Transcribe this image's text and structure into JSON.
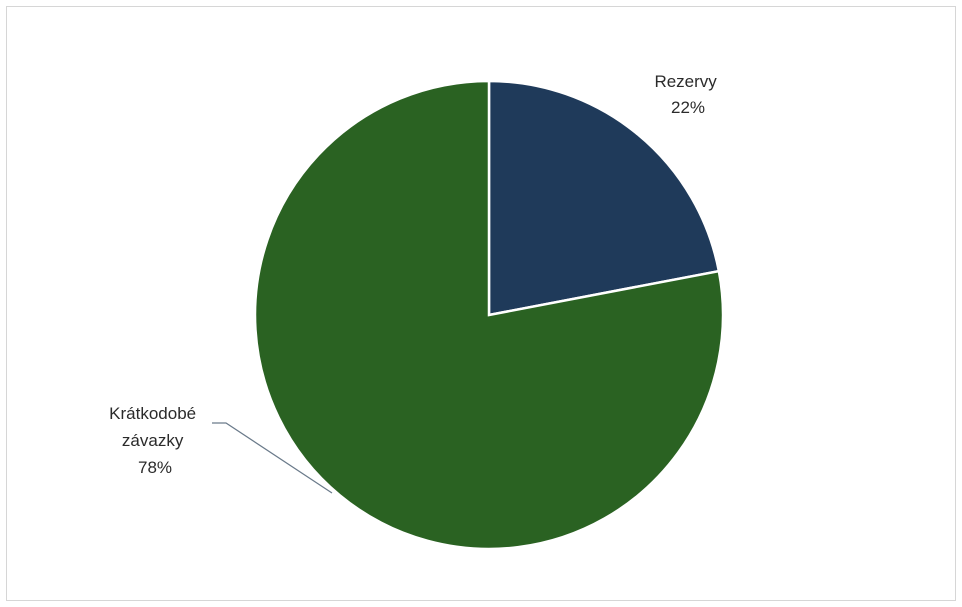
{
  "chart_data": {
    "type": "pie",
    "title": "",
    "slices": [
      {
        "label": "Rezervy",
        "value": 22,
        "value_label": "22%",
        "color": "#1f3a5a"
      },
      {
        "label": "Krátkodobé závazky",
        "label_lines": [
          "Krátkodobé",
          "závazky"
        ],
        "value": 78,
        "value_label": "78%",
        "color": "#2a6222"
      }
    ],
    "start_angle_deg": 0,
    "direction": "clockwise",
    "slice_border_color": "#ffffff",
    "legend": "none"
  }
}
